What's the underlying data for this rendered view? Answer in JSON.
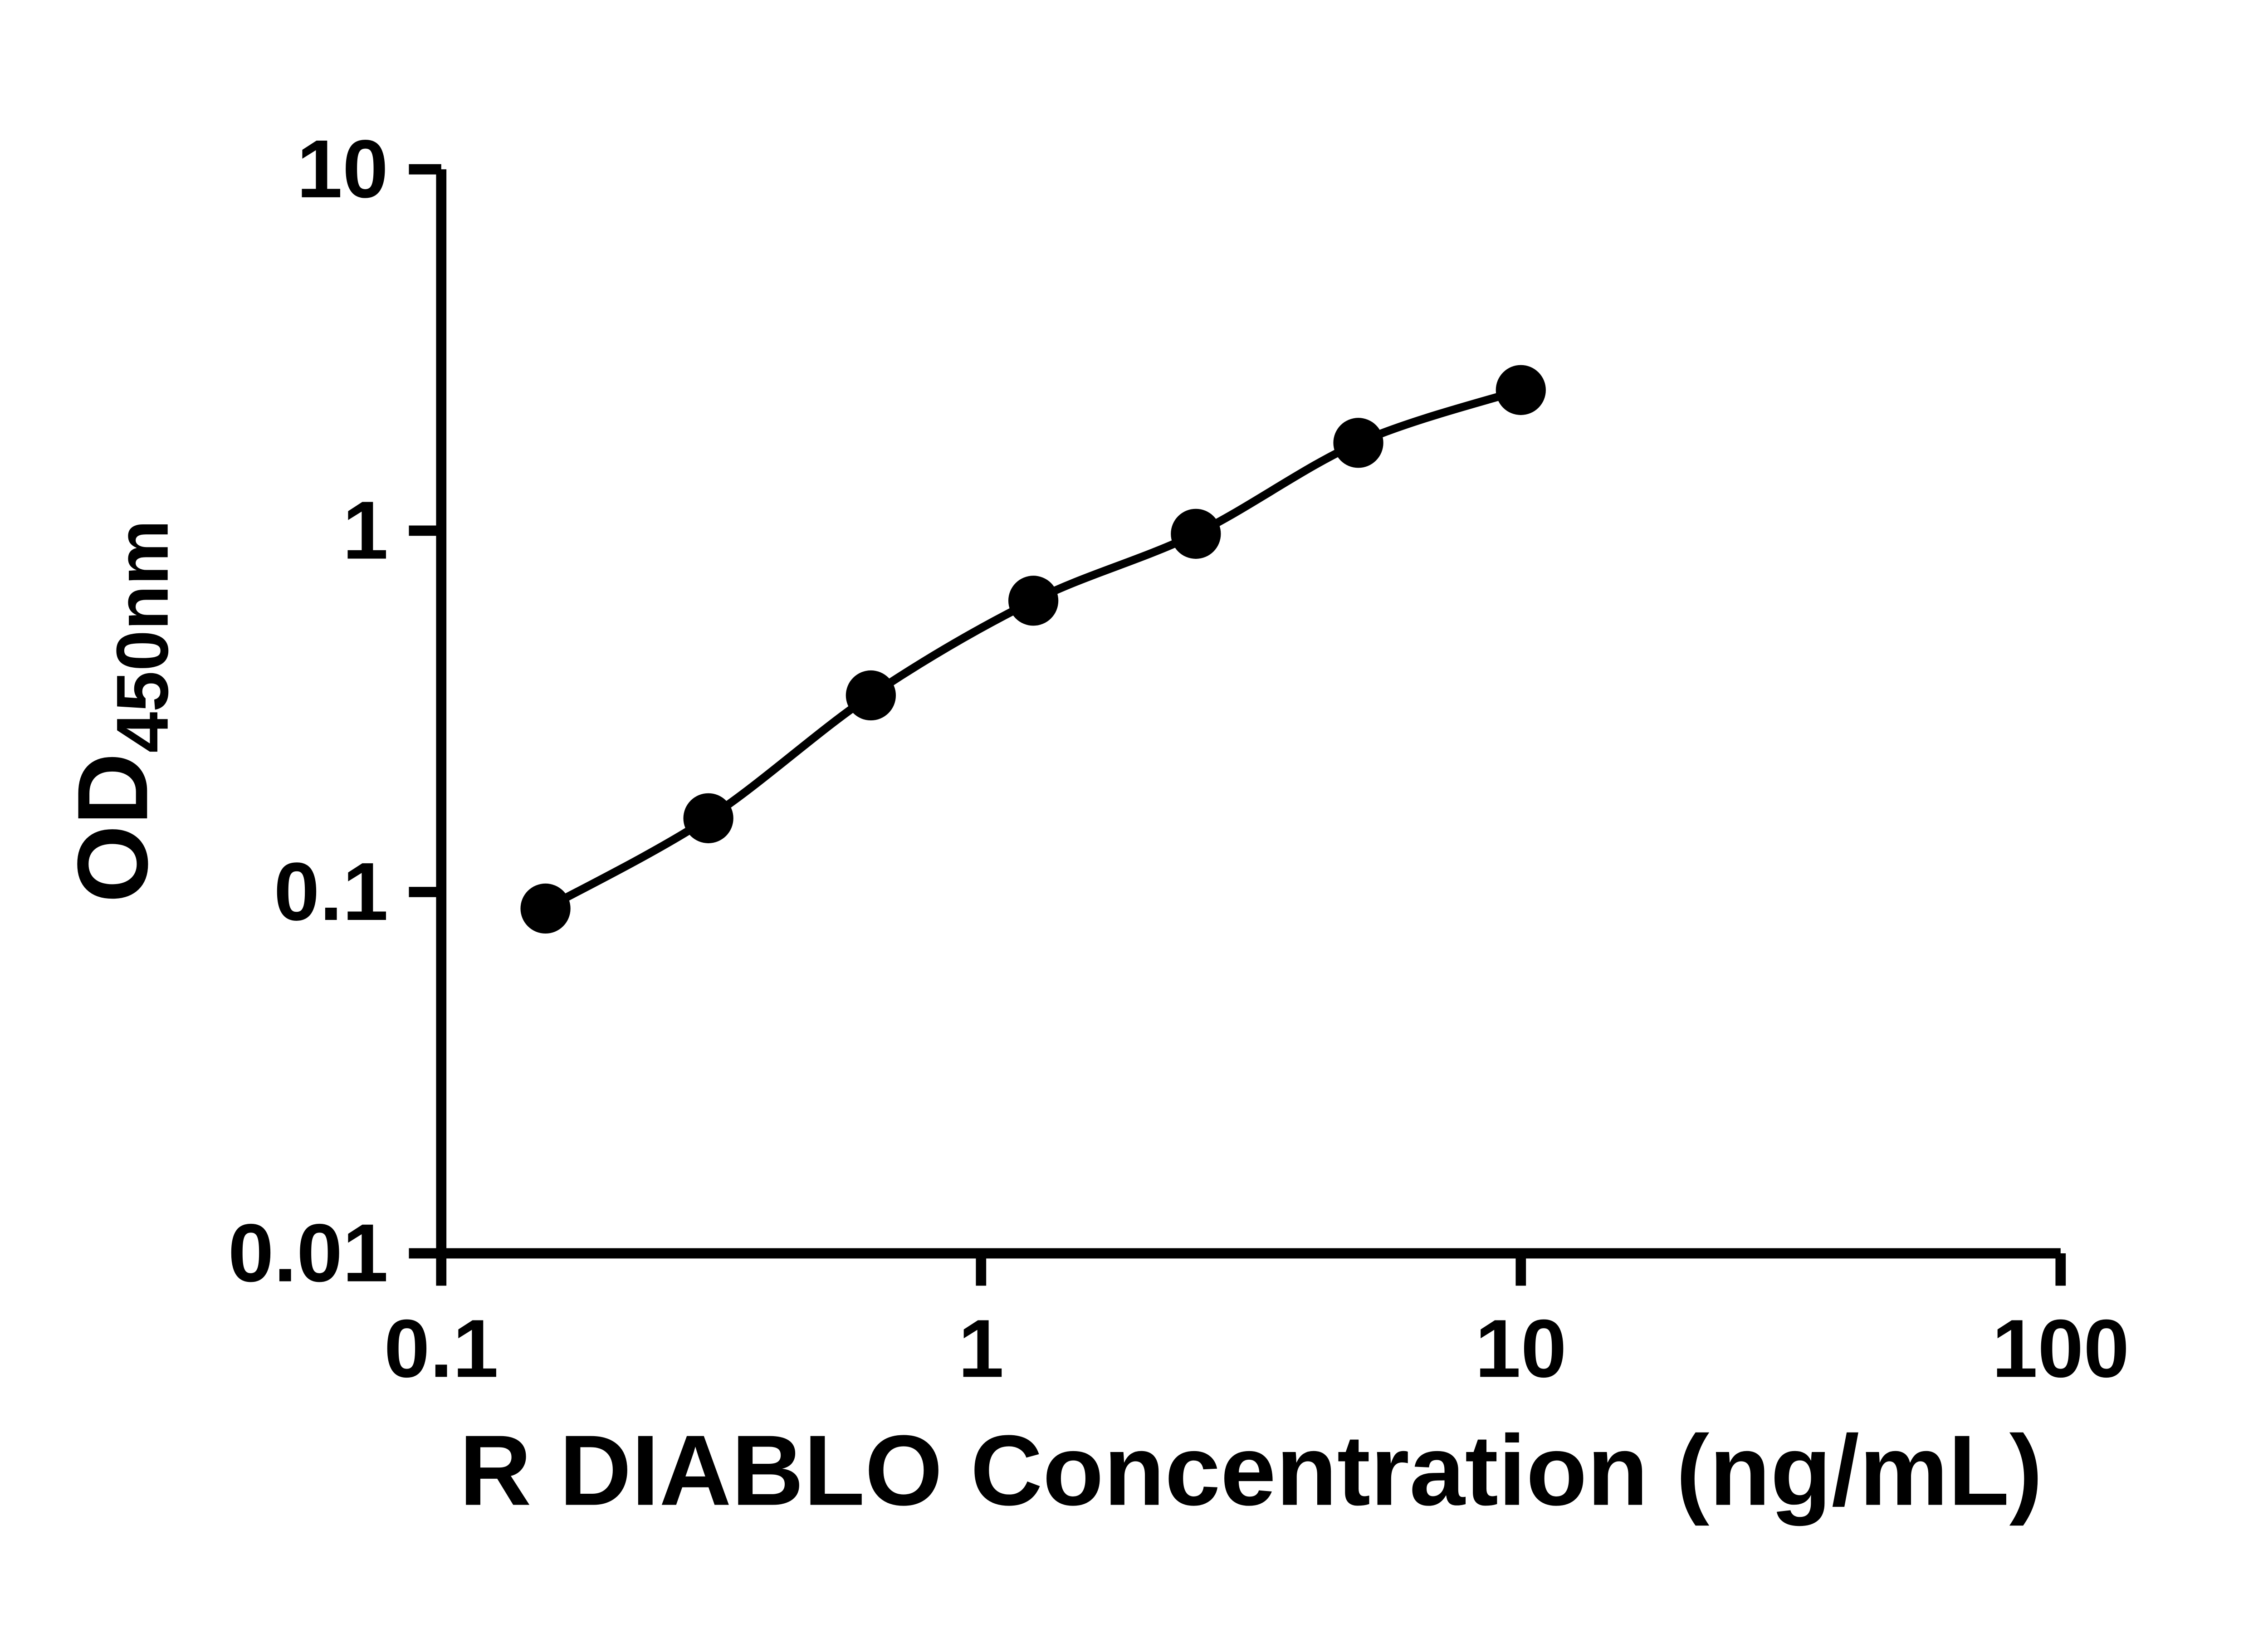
{
  "figure": {
    "background": "#ffffff",
    "ink_color": "#000000"
  },
  "chart_data": {
    "type": "scatter",
    "title": "",
    "xlabel": "R DIABLO Concentration (ng/mL)",
    "ylabel_main": "OD",
    "ylabel_sub": "450nm",
    "x_scale": "log",
    "y_scale": "log",
    "xlim": [
      0.1,
      100
    ],
    "ylim": [
      0.01,
      10
    ],
    "x_ticks": [
      0.1,
      1,
      10,
      100
    ],
    "x_tick_labels": [
      "0.1",
      "1",
      "10",
      "100"
    ],
    "y_ticks": [
      0.01,
      0.1,
      1,
      10
    ],
    "y_tick_labels": [
      "0.01",
      "0.1",
      "1",
      "10"
    ],
    "grid": false,
    "legend": "none",
    "marker_color": "#000000",
    "line_color": "#000000",
    "x": [
      0.156,
      0.3125,
      0.625,
      1.25,
      2.5,
      5,
      10
    ],
    "y": [
      0.09,
      0.16,
      0.35,
      0.64,
      0.98,
      1.75,
      2.45
    ]
  }
}
